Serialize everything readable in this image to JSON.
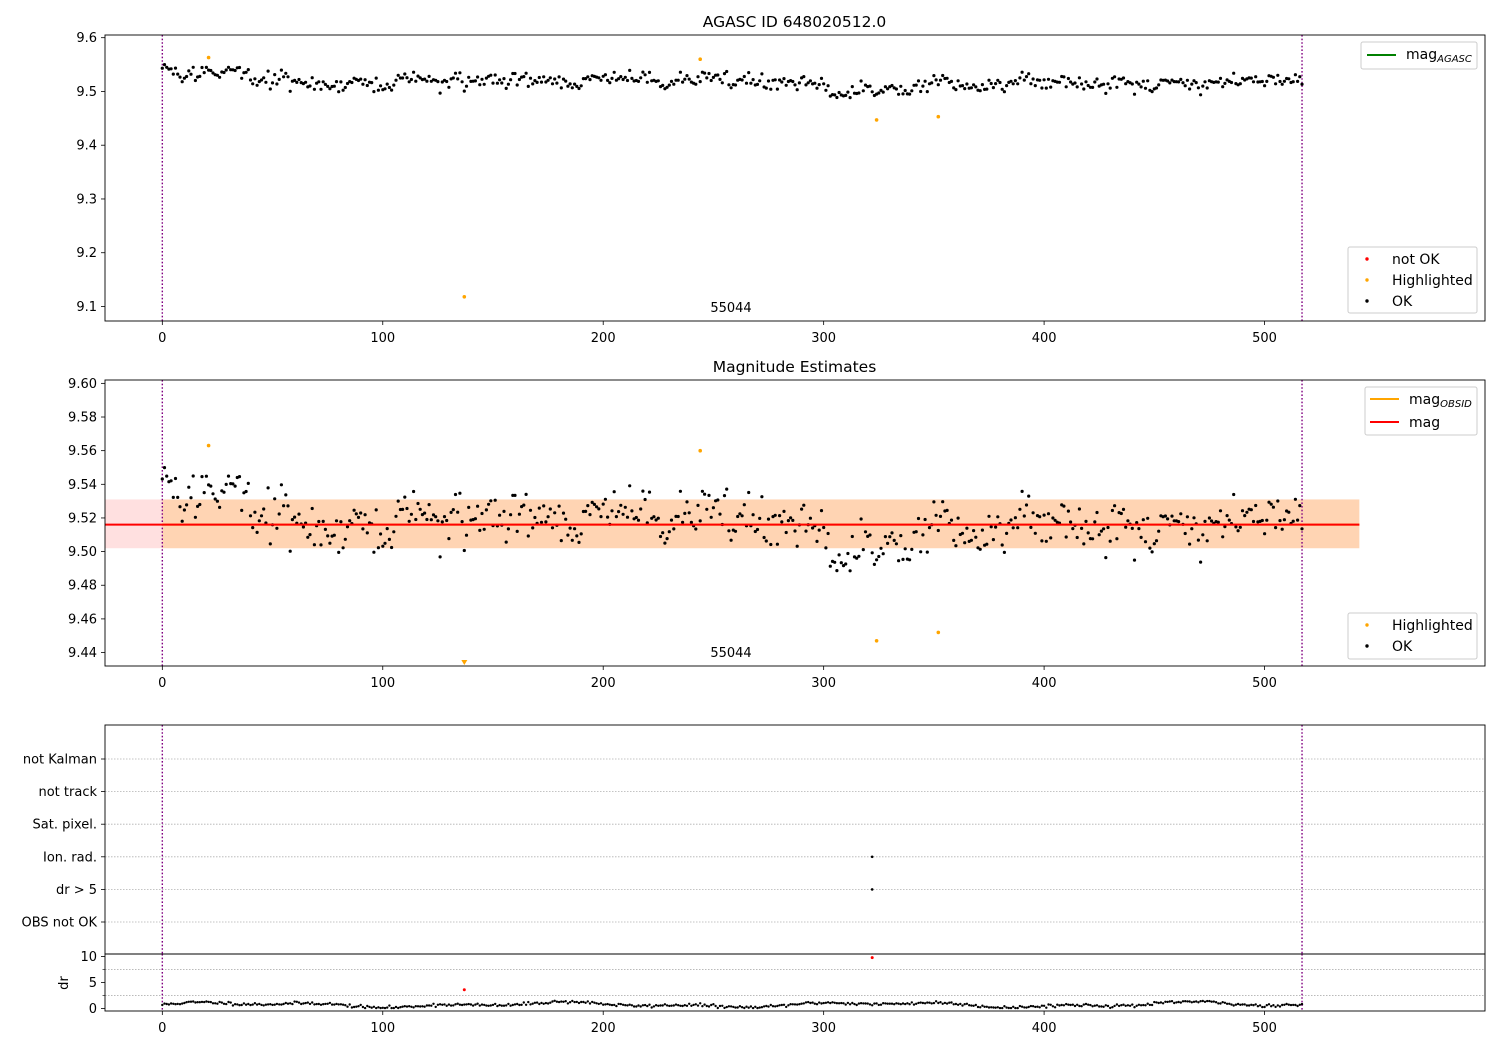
{
  "chart_data": [
    {
      "type": "scatter",
      "title": "AGASC ID 648020512.0",
      "xlim": [
        -26,
        600
      ],
      "ylim": [
        9.073,
        9.605
      ],
      "xticks": [
        0,
        100,
        200,
        300,
        400,
        500
      ],
      "yticks": [
        9.1,
        9.2,
        9.3,
        9.4,
        9.5,
        9.6
      ],
      "grid": false,
      "vlines": [
        0,
        517
      ],
      "obsid_label": {
        "text": "55044",
        "x": 258,
        "y": 9.092
      },
      "series": [
        {
          "name": "mag_AGASC",
          "kind": "line",
          "color": "#008000",
          "values": []
        },
        {
          "name": "not OK",
          "kind": "points",
          "color": "#ff0000",
          "points": []
        },
        {
          "name": "Highlighted",
          "kind": "points",
          "color": "#ffa500",
          "points": [
            [
              21,
              9.563
            ],
            [
              137,
              9.118
            ],
            [
              244,
              9.56
            ],
            [
              324,
              9.447
            ],
            [
              352,
              9.453
            ]
          ]
        },
        {
          "name": "OK",
          "kind": "points",
          "color": "#000000",
          "n": 517,
          "mean": 9.518,
          "sd": 0.012,
          "min": 9.477,
          "max": 9.554,
          "generated": true
        }
      ],
      "legend_top": {
        "placement": "top-right",
        "entries": [
          {
            "label_main": "mag",
            "label_sub": "AGASC",
            "color": "#008000",
            "kind": "line"
          }
        ]
      },
      "legend_bottom": {
        "placement": "lower-right",
        "entries": [
          {
            "label": "not OK",
            "color": "#ff0000"
          },
          {
            "label": "Highlighted",
            "color": "#ffa500"
          },
          {
            "label": "OK",
            "color": "#000000"
          }
        ]
      }
    },
    {
      "type": "scatter",
      "title": "Magnitude Estimates",
      "xlim": [
        -26,
        600
      ],
      "ylim": [
        9.432,
        9.602
      ],
      "xticks": [
        0,
        100,
        200,
        300,
        400,
        500
      ],
      "yticks": [
        9.44,
        9.46,
        9.48,
        9.5,
        9.52,
        9.54,
        9.56,
        9.58,
        9.6
      ],
      "grid": false,
      "vlines": [
        0,
        517
      ],
      "obsid_label": {
        "text": "55044",
        "x": 258,
        "y": 9.437
      },
      "mag": {
        "value": 9.516,
        "band_low": 9.502,
        "band_high": 9.531,
        "x_range": [
          -26,
          543
        ],
        "color": "#ff0000"
      },
      "mag_obsid": {
        "value": 9.516,
        "band_low": 9.502,
        "band_high": 9.531,
        "x_range": [
          0,
          543
        ],
        "color": "#ffa500"
      },
      "series": [
        {
          "name": "Highlighted",
          "kind": "points",
          "color": "#ffa500",
          "points": [
            [
              21,
              9.563
            ],
            [
              244,
              9.56
            ],
            [
              324,
              9.447
            ],
            [
              352,
              9.452
            ]
          ]
        },
        {
          "name": "OK",
          "kind": "points",
          "color": "#000000",
          "n": 517,
          "mean": 9.518,
          "sd": 0.012,
          "min": 9.477,
          "max": 9.554,
          "generated": true
        }
      ],
      "legend_top": {
        "placement": "top-right",
        "entries": [
          {
            "label_main": "mag",
            "label_sub": "OBSID",
            "color": "#ffa500",
            "kind": "line"
          },
          {
            "label_main": "mag",
            "label_sub": "",
            "color": "#ff0000",
            "kind": "line"
          }
        ]
      },
      "legend_bottom": {
        "placement": "lower-right",
        "entries": [
          {
            "label": "Highlighted",
            "color": "#ffa500"
          },
          {
            "label": "OK",
            "color": "#000000"
          }
        ]
      }
    },
    {
      "type": "scatter",
      "title": "",
      "xlim": [
        -26,
        600
      ],
      "categories": [
        "not Kalman",
        "not track",
        "Sat. pixel.",
        "Ion. rad.",
        "dr > 5",
        "OBS not OK"
      ],
      "flag_points": [
        {
          "category": "Ion. rad.",
          "x": 322
        },
        {
          "category": "dr > 5",
          "x": 322
        }
      ],
      "vlines": [
        0,
        517
      ],
      "grid": true
    },
    {
      "type": "scatter",
      "title": "",
      "xlabel": "",
      "ylabel": "dr",
      "xlim": [
        -26,
        600
      ],
      "ylim": [
        -0.5,
        10.5
      ],
      "xticks": [
        0,
        100,
        200,
        300,
        400,
        500
      ],
      "yticks": [
        0,
        5,
        10
      ],
      "vlines": [
        0,
        517
      ],
      "series": [
        {
          "name": "not OK",
          "color": "#ff0000",
          "points": [
            [
              322,
              9.8
            ],
            [
              137,
              3.6
            ]
          ]
        },
        {
          "name": "OK",
          "color": "#000000",
          "n": 517,
          "mean": 0.7,
          "sd": 0.3,
          "generated": true
        }
      ]
    }
  ]
}
